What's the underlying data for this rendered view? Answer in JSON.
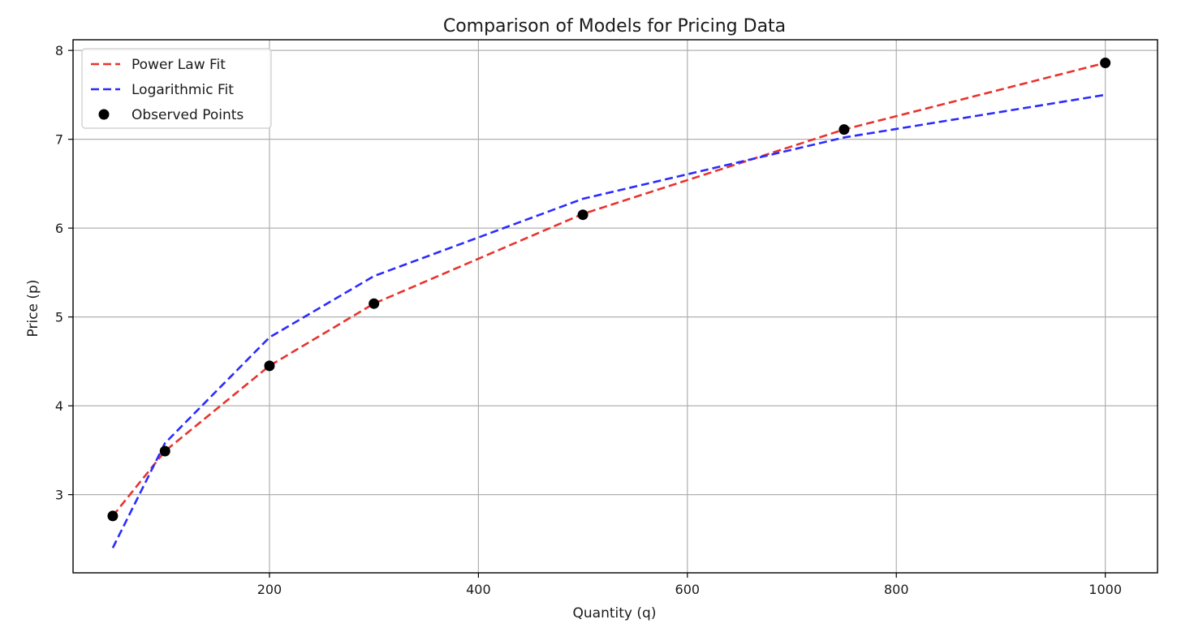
{
  "chart_data": {
    "type": "line",
    "title": "Comparison of Models for Pricing Data",
    "xlabel": "Quantity (q)",
    "ylabel": "Price (p)",
    "xlim": [
      12,
      1050
    ],
    "ylim": [
      2.12,
      8.12
    ],
    "xticks": [
      200,
      400,
      600,
      800,
      1000
    ],
    "yticks": [
      3,
      4,
      5,
      6,
      7,
      8
    ],
    "grid": true,
    "legend_position": "upper-left",
    "x": [
      50,
      100,
      200,
      300,
      500,
      750,
      1000
    ],
    "series": [
      {
        "name": "Power Law Fit",
        "kind": "line",
        "style": "dashed",
        "color": "#e8342e",
        "values": [
          2.76,
          3.49,
          4.45,
          5.15,
          6.16,
          7.11,
          7.86
        ]
      },
      {
        "name": "Logarithmic Fit",
        "kind": "line",
        "style": "dashed",
        "color": "#2b2bff",
        "values": [
          2.4,
          3.58,
          4.77,
          5.46,
          6.33,
          7.02,
          7.5
        ]
      },
      {
        "name": "Observed Points",
        "kind": "scatter",
        "color": "#000000",
        "values": [
          2.76,
          3.49,
          4.45,
          5.15,
          6.15,
          7.11,
          7.86
        ]
      }
    ]
  }
}
